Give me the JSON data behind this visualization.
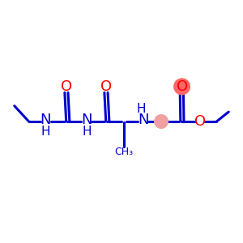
{
  "bg_color": "#ffffff",
  "bond_color": "#0000cc",
  "oxygen_color": "#ff0000",
  "carbon_fill": "#f0a0a0",
  "oxygen_fill": "#ff6666",
  "fig_size": [
    3.0,
    3.0
  ],
  "dpi": 100,
  "xlim": [
    0,
    10
  ],
  "ylim": [
    2,
    8
  ]
}
